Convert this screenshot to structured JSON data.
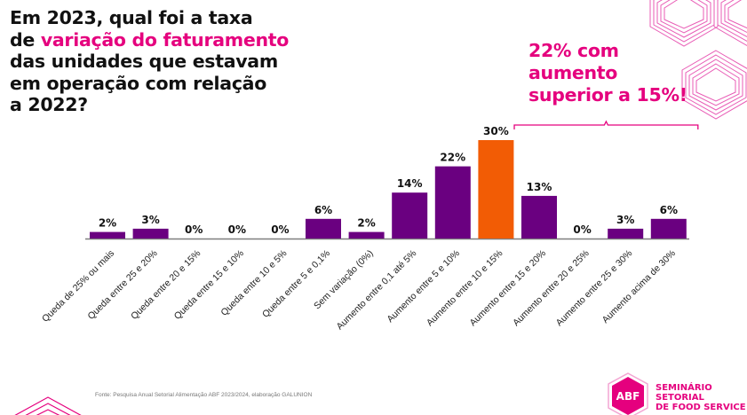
{
  "title": {
    "prefix": "Em 2023, qual foi a taxa",
    "line2_start": "de ",
    "highlight": "variação do faturamento",
    "line3": "das unidades que estavam",
    "line4": "em operação com relação",
    "line5": "a 2022?"
  },
  "callout": {
    "line1": "22% com",
    "line2": "aumento",
    "line3": "superior a 15%!"
  },
  "source": "Fonte: Pesquisa Anual Setorial Alimentação ABF 2023/2024, elaboração GALUNION",
  "logo": {
    "mark": "ABF",
    "line1": "SEMINÁRIO SETORIAL",
    "line2": "DE FOOD SERVICE"
  },
  "colors": {
    "bar": "#6a0080",
    "highlight_bar": "#f25c05",
    "accent": "#e5007e",
    "text": "#111111",
    "axis": "#7f7f7f"
  },
  "chart_data": {
    "type": "bar",
    "title": "Em 2023, qual foi a taxa de variação do faturamento das unidades que estavam em operação com relação a 2022?",
    "xlabel": "",
    "ylabel": "",
    "ylim": [
      0,
      30
    ],
    "grid": false,
    "categories": [
      "Queda de 25% ou mais",
      "Queda entre 25 e 20%",
      "Queda entre 20 e 15%",
      "Queda entre 15 e 10%",
      "Queda entre 10 e 5%",
      "Queda entre 5 e 0,1%",
      "Sem variação (0%)",
      "Aumento entre 0,1 até 5%",
      "Aumento entre 5 e 10%",
      "Aumento entre 10 e 15%",
      "Aumento entre 15 e 20%",
      "Aumento entre 20 e 25%",
      "Aumento entre 25 e 30%",
      "Aumento acima de 30%"
    ],
    "values": [
      2,
      3,
      0,
      0,
      0,
      6,
      2,
      14,
      22,
      30,
      13,
      0,
      3,
      6
    ],
    "data_labels": [
      "2%",
      "3%",
      "0%",
      "0%",
      "0%",
      "6%",
      "2%",
      "14%",
      "22%",
      "30%",
      "13%",
      "0%",
      "3%",
      "6%"
    ],
    "highlighted_index": 9,
    "annotation": {
      "text": "22% com aumento superior a 15%!",
      "spans_categories": [
        "Aumento entre 15 e 20%",
        "Aumento acima de 30%"
      ]
    }
  }
}
